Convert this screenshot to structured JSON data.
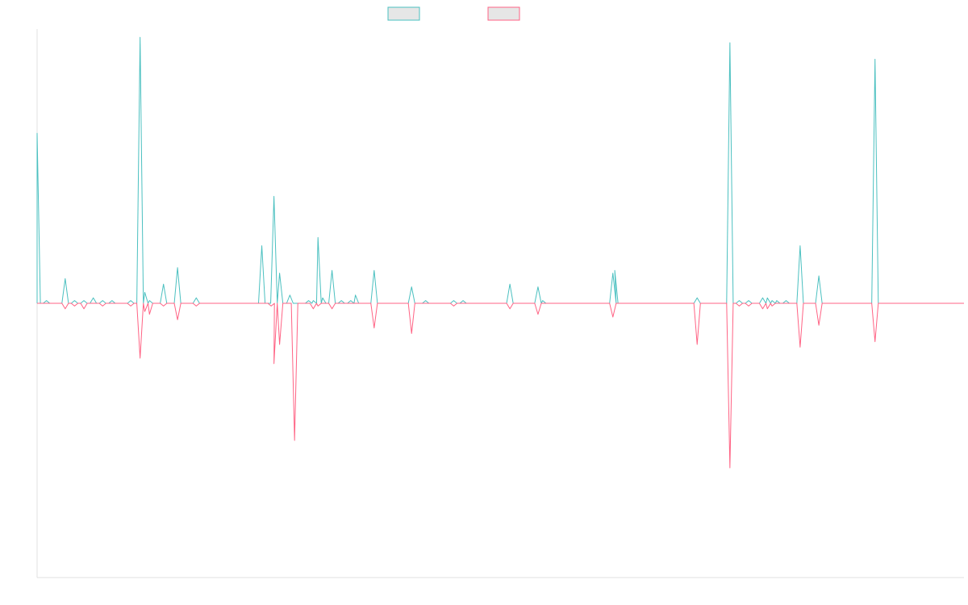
{
  "chart_data": {
    "type": "line",
    "title": "",
    "xlabel": "",
    "ylabel": "",
    "grid": false,
    "legend": "top-center",
    "x_points": 100,
    "ylim": [
      -100,
      100
    ],
    "series": [
      {
        "color": "#4bc0c0",
        "legend_fill": "#e6e6e6",
        "points": [
          [
            0,
            62
          ],
          [
            1,
            1
          ],
          [
            3,
            9
          ],
          [
            4,
            1
          ],
          [
            5,
            1
          ],
          [
            6,
            2
          ],
          [
            7,
            1
          ],
          [
            8,
            1
          ],
          [
            10,
            1
          ],
          [
            11,
            97
          ],
          [
            11.5,
            4
          ],
          [
            12,
            1
          ],
          [
            13.5,
            7
          ],
          [
            15,
            13
          ],
          [
            17,
            2
          ],
          [
            24,
            21
          ],
          [
            25.3,
            39
          ],
          [
            25.9,
            11
          ],
          [
            27,
            3
          ],
          [
            29,
            1
          ],
          [
            29.5,
            1
          ],
          [
            30,
            24
          ],
          [
            30.5,
            2
          ],
          [
            31.5,
            12
          ],
          [
            32.5,
            1
          ],
          [
            33.5,
            1
          ],
          [
            34,
            3
          ],
          [
            36,
            12
          ],
          [
            40,
            6
          ],
          [
            41.5,
            1
          ],
          [
            44.5,
            1
          ],
          [
            45.5,
            1
          ],
          [
            50.5,
            7
          ],
          [
            53.5,
            6
          ],
          [
            54,
            1
          ],
          [
            61.5,
            11
          ],
          [
            61.7,
            12
          ],
          [
            70.5,
            2
          ],
          [
            74,
            95
          ],
          [
            75,
            1
          ],
          [
            76,
            1
          ],
          [
            77.5,
            2
          ],
          [
            78,
            2
          ],
          [
            78.5,
            1
          ],
          [
            79,
            1
          ],
          [
            80,
            1
          ],
          [
            81.5,
            21
          ],
          [
            83.5,
            10
          ],
          [
            89.5,
            89
          ]
        ]
      },
      {
        "color": "#ff6384",
        "legend_fill": "#e6e6e6",
        "points": [
          [
            3,
            -2
          ],
          [
            4,
            -1
          ],
          [
            5,
            -2
          ],
          [
            7,
            -1
          ],
          [
            10,
            -1
          ],
          [
            11,
            -20
          ],
          [
            11.5,
            -3
          ],
          [
            12,
            -4
          ],
          [
            13.5,
            -1
          ],
          [
            15,
            -6
          ],
          [
            17,
            -1
          ],
          [
            25,
            -1
          ],
          [
            25.3,
            -22
          ],
          [
            25.9,
            -15
          ],
          [
            27.5,
            -50
          ],
          [
            29.5,
            -2
          ],
          [
            30,
            -1
          ],
          [
            31.5,
            -2
          ],
          [
            36,
            -9
          ],
          [
            40,
            -11
          ],
          [
            44.5,
            -1
          ],
          [
            50.5,
            -2
          ],
          [
            53.5,
            -4
          ],
          [
            61.5,
            -5
          ],
          [
            70.5,
            -15
          ],
          [
            74,
            -60
          ],
          [
            75,
            -1
          ],
          [
            76,
            -1
          ],
          [
            77.5,
            -2
          ],
          [
            78,
            -2
          ],
          [
            78.5,
            -1
          ],
          [
            81.5,
            -16
          ],
          [
            83.5,
            -8
          ],
          [
            89.5,
            -14
          ]
        ]
      }
    ]
  }
}
